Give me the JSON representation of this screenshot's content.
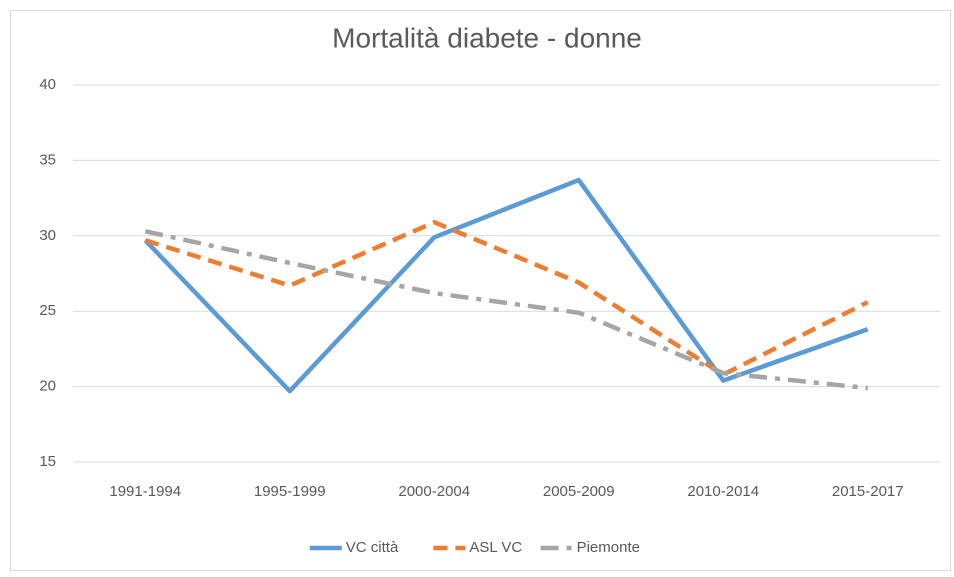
{
  "chart_data": {
    "type": "line",
    "title": "Mortalità diabete - donne",
    "categories": [
      "1991-1994",
      "1995-1999",
      "2000-2004",
      "2005-2009",
      "2010-2014",
      "2015-2017"
    ],
    "series": [
      {
        "name": "VC città",
        "color": "#5b9bd5",
        "dash": "solid",
        "values": [
          29.7,
          19.7,
          29.9,
          33.7,
          20.4,
          23.8
        ]
      },
      {
        "name": "ASL VC",
        "color": "#ed7d31",
        "dash": "dash",
        "values": [
          29.7,
          26.7,
          30.9,
          26.9,
          20.8,
          25.6
        ]
      },
      {
        "name": "Piemonte",
        "color": "#a5a5a5",
        "dash": "dashdot",
        "values": [
          30.3,
          28.2,
          26.2,
          24.9,
          20.9,
          19.9
        ]
      }
    ],
    "ylim": [
      15,
      40
    ],
    "yticks": [
      15,
      20,
      25,
      30,
      35,
      40
    ],
    "grid": true,
    "legend": "bottom"
  }
}
